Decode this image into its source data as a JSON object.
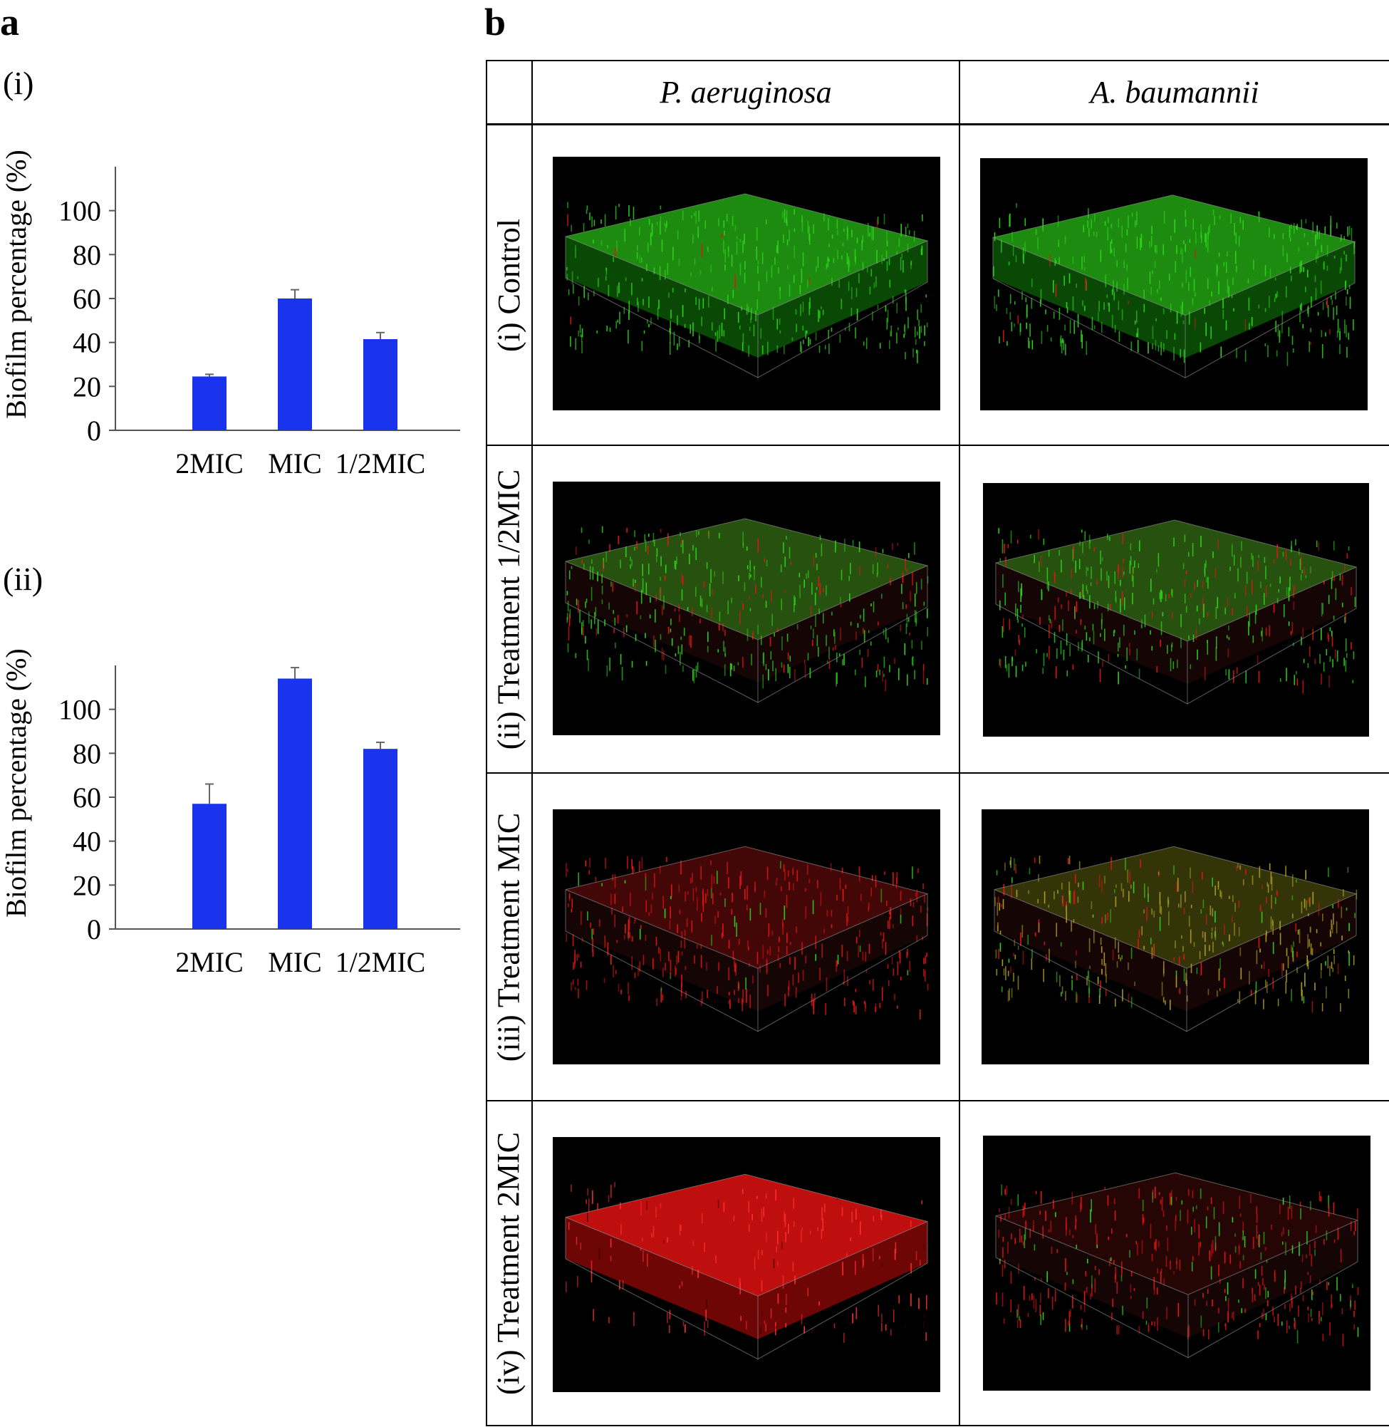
{
  "panel_a": {
    "letter": "a"
  },
  "panel_b": {
    "letter": "b"
  },
  "chart_data": [
    {
      "type": "bar",
      "panel_label": "(i)",
      "categories": [
        "2MIC",
        "MIC",
        "1/2MIC"
      ],
      "values": [
        24.5,
        60,
        41.5
      ],
      "errors": [
        1,
        4,
        3
      ],
      "ylabel": "Biofilm percentage (%)",
      "xlabel": "",
      "title": "",
      "ylim": [
        0,
        120
      ],
      "yticks": [
        0,
        20,
        40,
        60,
        80,
        100
      ],
      "bar_color": "#1a34ee",
      "grid": false
    },
    {
      "type": "bar",
      "panel_label": "(ii)",
      "categories": [
        "2MIC",
        "MIC",
        "1/2MIC"
      ],
      "values": [
        57,
        114,
        82
      ],
      "errors": [
        9,
        5,
        3
      ],
      "ylabel": "Biofilm percentage (%)",
      "xlabel": "",
      "title": "",
      "ylim": [
        0,
        120
      ],
      "yticks": [
        0,
        20,
        40,
        60,
        80,
        100
      ],
      "bar_color": "#1a34ee",
      "grid": false
    }
  ],
  "table": {
    "columns": [
      "P. aeruginosa",
      "A. baumannii"
    ],
    "rows": [
      {
        "label": "(i) Control",
        "images": [
          "green",
          "green"
        ]
      },
      {
        "label": "(ii) Treatment 1/2MIC",
        "images": [
          "green-red",
          "green-red"
        ]
      },
      {
        "label": "(iii) Treatment MIC",
        "images": [
          "red",
          "mixed"
        ]
      },
      {
        "label": "(iv) Treatment 2MIC",
        "images": [
          "solid-red",
          "dark-red"
        ]
      }
    ]
  },
  "colors": {
    "green": "#2fd21c",
    "red": "#e61414",
    "bar": "#1a34ee"
  }
}
